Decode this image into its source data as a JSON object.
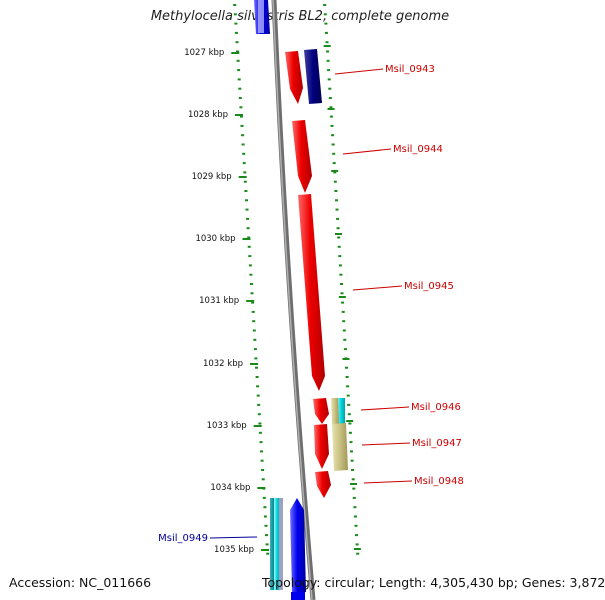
{
  "title": "Methylocella silvestris BL2, complete genome",
  "accession": "Accession: NC_011666",
  "topology": "Topology: circular; Length: 4,305,430 bp; Genes: 3,872",
  "ticks": [
    "1027 kbp",
    "1028 kbp",
    "1029 kbp",
    "1030 kbp",
    "1031 kbp",
    "1032 kbp",
    "1033 kbp",
    "1034 kbp",
    "1035 kbp"
  ],
  "genes": [
    {
      "name": "Msil_0943",
      "color": "#cc0000"
    },
    {
      "name": "Msil_0944",
      "color": "#cc0000"
    },
    {
      "name": "Msil_0945",
      "color": "#cc0000"
    },
    {
      "name": "Msil_0946",
      "color": "#cc0000"
    },
    {
      "name": "Msil_0947",
      "color": "#cc0000"
    },
    {
      "name": "Msil_0948",
      "color": "#cc0000"
    },
    {
      "name": "Msil_0949",
      "color": "#000099"
    }
  ],
  "colors": {
    "forward_cds": "#ee0000",
    "reverse_cds": "#0000ee",
    "dark_blue_feature": "#000080",
    "cyan_feature": "#00d8e0",
    "khaki_feature": "#c8c080",
    "backbone": "#888888",
    "tick_marks": "#1a8a1a"
  }
}
